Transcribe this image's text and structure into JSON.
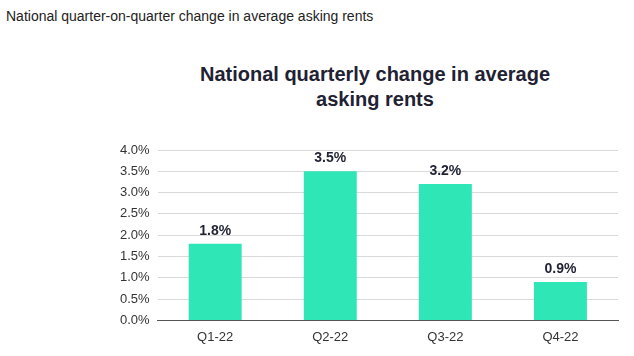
{
  "chart_data": {
    "type": "bar",
    "subtitle": "National quarter-on-quarter change in average asking rents",
    "title": "National quarterly change in average asking rents",
    "categories": [
      "Q1-22",
      "Q2-22",
      "Q3-22",
      "Q4-22"
    ],
    "values": [
      1.8,
      3.5,
      3.2,
      0.9
    ],
    "value_labels": [
      "1.8%",
      "3.5%",
      "3.2%",
      "0.9%"
    ],
    "data_labels": true,
    "color": "#2ee6b6",
    "ylim": [
      0,
      4
    ],
    "yticks": [
      {
        "value": 0,
        "label": "0.0%"
      },
      {
        "value": 0.5,
        "label": "0.5%"
      },
      {
        "value": 1,
        "label": "1.0%"
      },
      {
        "value": 1.5,
        "label": "1.5%"
      },
      {
        "value": 2,
        "label": "2.0%"
      },
      {
        "value": 2.5,
        "label": "2.5%"
      },
      {
        "value": 3,
        "label": "3.0%"
      },
      {
        "value": 3.5,
        "label": "3.5%"
      },
      {
        "value": 4,
        "label": "4.0%"
      }
    ],
    "grid": true
  }
}
